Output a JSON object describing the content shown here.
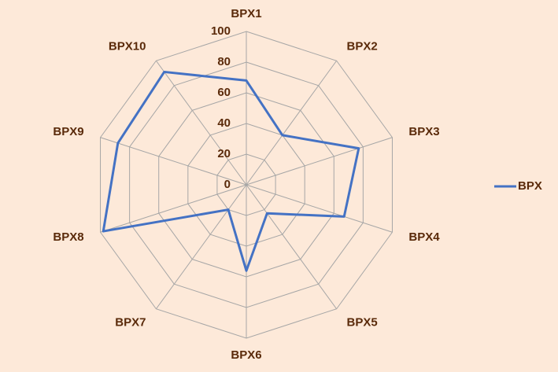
{
  "chart_data": {
    "type": "radar",
    "categories": [
      "BPX1",
      "BPX2",
      "BPX3",
      "BPX4",
      "BPX5",
      "BPX6",
      "BPX7",
      "BPX8",
      "BPX9",
      "BPX10"
    ],
    "series": [
      {
        "name": "BPX",
        "color": "#4472c4",
        "values": [
          68,
          40,
          77,
          67,
          23,
          56,
          20,
          98,
          88,
          91
        ]
      }
    ],
    "ylim": [
      0,
      100
    ],
    "yticks": [
      0,
      20,
      40,
      60,
      80,
      100
    ],
    "grid": true,
    "legend": "right"
  }
}
